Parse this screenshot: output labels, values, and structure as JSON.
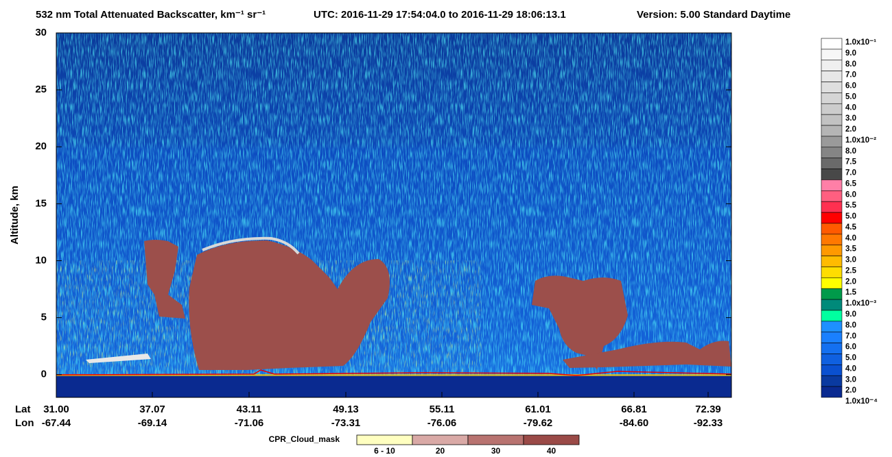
{
  "chart_data": {
    "type": "curtain",
    "title": "532 nm Total Attenuated Backscatter, km⁻¹ sr⁻¹",
    "time_range": "UTC:  2016-11-29 17:54:04.0  to  2016-11-29 18:06:13.1",
    "version": "Version: 5.00  Standard  Daytime",
    "y_label": "Altitude, km",
    "ylim": [
      -2,
      30
    ],
    "yticks": [
      0,
      5,
      10,
      15,
      20,
      25,
      30
    ],
    "x_row_labels": [
      "Lat",
      "Lon"
    ],
    "lat": [
      "31.00",
      "37.07",
      "43.11",
      "49.13",
      "55.11",
      "61.01",
      "66.81",
      "72.39"
    ],
    "lon": [
      "-67.44",
      "-69.14",
      "-71.06",
      "-73.31",
      "-76.06",
      "-79.62",
      "-84.60",
      "-92.33"
    ],
    "colorbar": {
      "labels": [
        "1.0x10⁻¹",
        "9.0",
        "8.0",
        "7.0",
        "6.0",
        "5.0",
        "4.0",
        "3.0",
        "2.0",
        "1.0x10⁻²",
        "8.0",
        "7.5",
        "7.0",
        "6.5",
        "6.0",
        "5.5",
        "5.0",
        "4.5",
        "4.0",
        "3.5",
        "3.0",
        "2.5",
        "2.0",
        "1.5",
        "1.0x10⁻³",
        "9.0",
        "8.0",
        "7.0",
        "6.0",
        "5.0",
        "4.0",
        "3.0",
        "2.0",
        "1.0x10⁻⁴"
      ],
      "colors": [
        "#ffffff",
        "#f7f7f7",
        "#efefef",
        "#e7e7e7",
        "#dfdfdf",
        "#d5d5d5",
        "#cccccc",
        "#c2c2c2",
        "#b5b5b5",
        "#9a9a9a",
        "#858585",
        "#6a6a6a",
        "#484848",
        "#ff7fa7",
        "#ff5f80",
        "#ff3050",
        "#ff0000",
        "#ff5a00",
        "#ff7800",
        "#ff9900",
        "#ffbb00",
        "#ffdd00",
        "#ffff00",
        "#009a4a",
        "#008a7a",
        "#00ffa0",
        "#1e90ff",
        "#1a80ff",
        "#1470f0",
        "#0f60e0",
        "#0a50d0",
        "#0a3aa0",
        "#0a2a90"
      ]
    },
    "cloud_mask_legend": {
      "title": "CPR_Cloud_mask",
      "labels": [
        "6 - 10",
        "20",
        "30",
        "40"
      ],
      "colors": [
        "#ffffc0",
        "#d9a9a6",
        "#b87370",
        "#9a4a47"
      ]
    }
  }
}
